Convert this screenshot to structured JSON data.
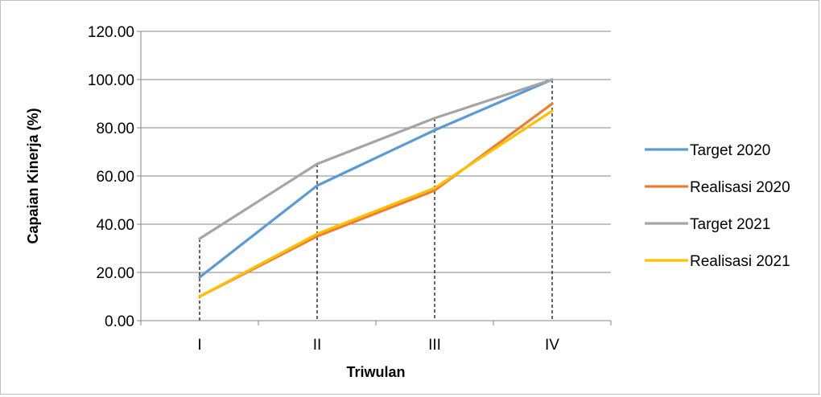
{
  "chart_data": {
    "type": "line",
    "categories": [
      "I",
      "II",
      "III",
      "IV"
    ],
    "xlabel": "Triwulan",
    "ylabel": "Capaian Kinerja (%)",
    "ylim": [
      0,
      120
    ],
    "yticks": [
      "0.00",
      "20.00",
      "40.00",
      "60.00",
      "80.00",
      "100.00",
      "120.00"
    ],
    "grid": "horizontal",
    "drop_lines": true,
    "legend_position": "right",
    "series": [
      {
        "name": "Target 2020",
        "color": "#5b9bd5",
        "values": [
          18,
          56,
          79,
          100
        ]
      },
      {
        "name": "Realisasi 2020",
        "color": "#ed7d31",
        "values": [
          10,
          35,
          54,
          90
        ]
      },
      {
        "name": "Target 2021",
        "color": "#a5a5a5",
        "values": [
          34,
          65,
          84,
          100
        ]
      },
      {
        "name": "Realisasi 2021",
        "color": "#ffc000",
        "values": [
          10,
          36,
          55,
          87
        ]
      }
    ]
  }
}
